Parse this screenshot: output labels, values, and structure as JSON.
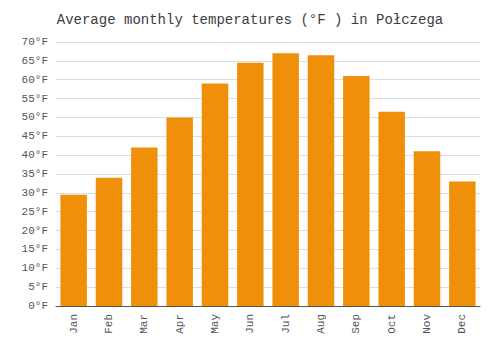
{
  "chart_data": {
    "type": "bar",
    "title": "Average monthly temperatures (°F ) in Połczega",
    "categories": [
      "Jan",
      "Feb",
      "Mar",
      "Apr",
      "May",
      "Jun",
      "Jul",
      "Aug",
      "Sep",
      "Oct",
      "Nov",
      "Dec"
    ],
    "values": [
      29.5,
      34.0,
      42.0,
      50.0,
      59.0,
      64.5,
      67.0,
      66.5,
      61.0,
      51.5,
      41.0,
      33.0
    ],
    "color": "#F0900A",
    "ylim": [
      0,
      70
    ],
    "yticks": [
      {
        "value": 0,
        "label": "0°F"
      },
      {
        "value": 5,
        "label": "5°F"
      },
      {
        "value": 10,
        "label": "10°F"
      },
      {
        "value": 15,
        "label": "15°F"
      },
      {
        "value": 20,
        "label": "20°F"
      },
      {
        "value": 25,
        "label": "25°F"
      },
      {
        "value": 30,
        "label": "30°F"
      },
      {
        "value": 35,
        "label": "35°F"
      },
      {
        "value": 40,
        "label": "40°F"
      },
      {
        "value": 45,
        "label": "45°F"
      },
      {
        "value": 50,
        "label": "50°F"
      },
      {
        "value": 55,
        "label": "55°F"
      },
      {
        "value": 60,
        "label": "60°F"
      },
      {
        "value": 65,
        "label": "65°F"
      },
      {
        "value": 70,
        "label": "70°F"
      }
    ],
    "grid": true
  }
}
